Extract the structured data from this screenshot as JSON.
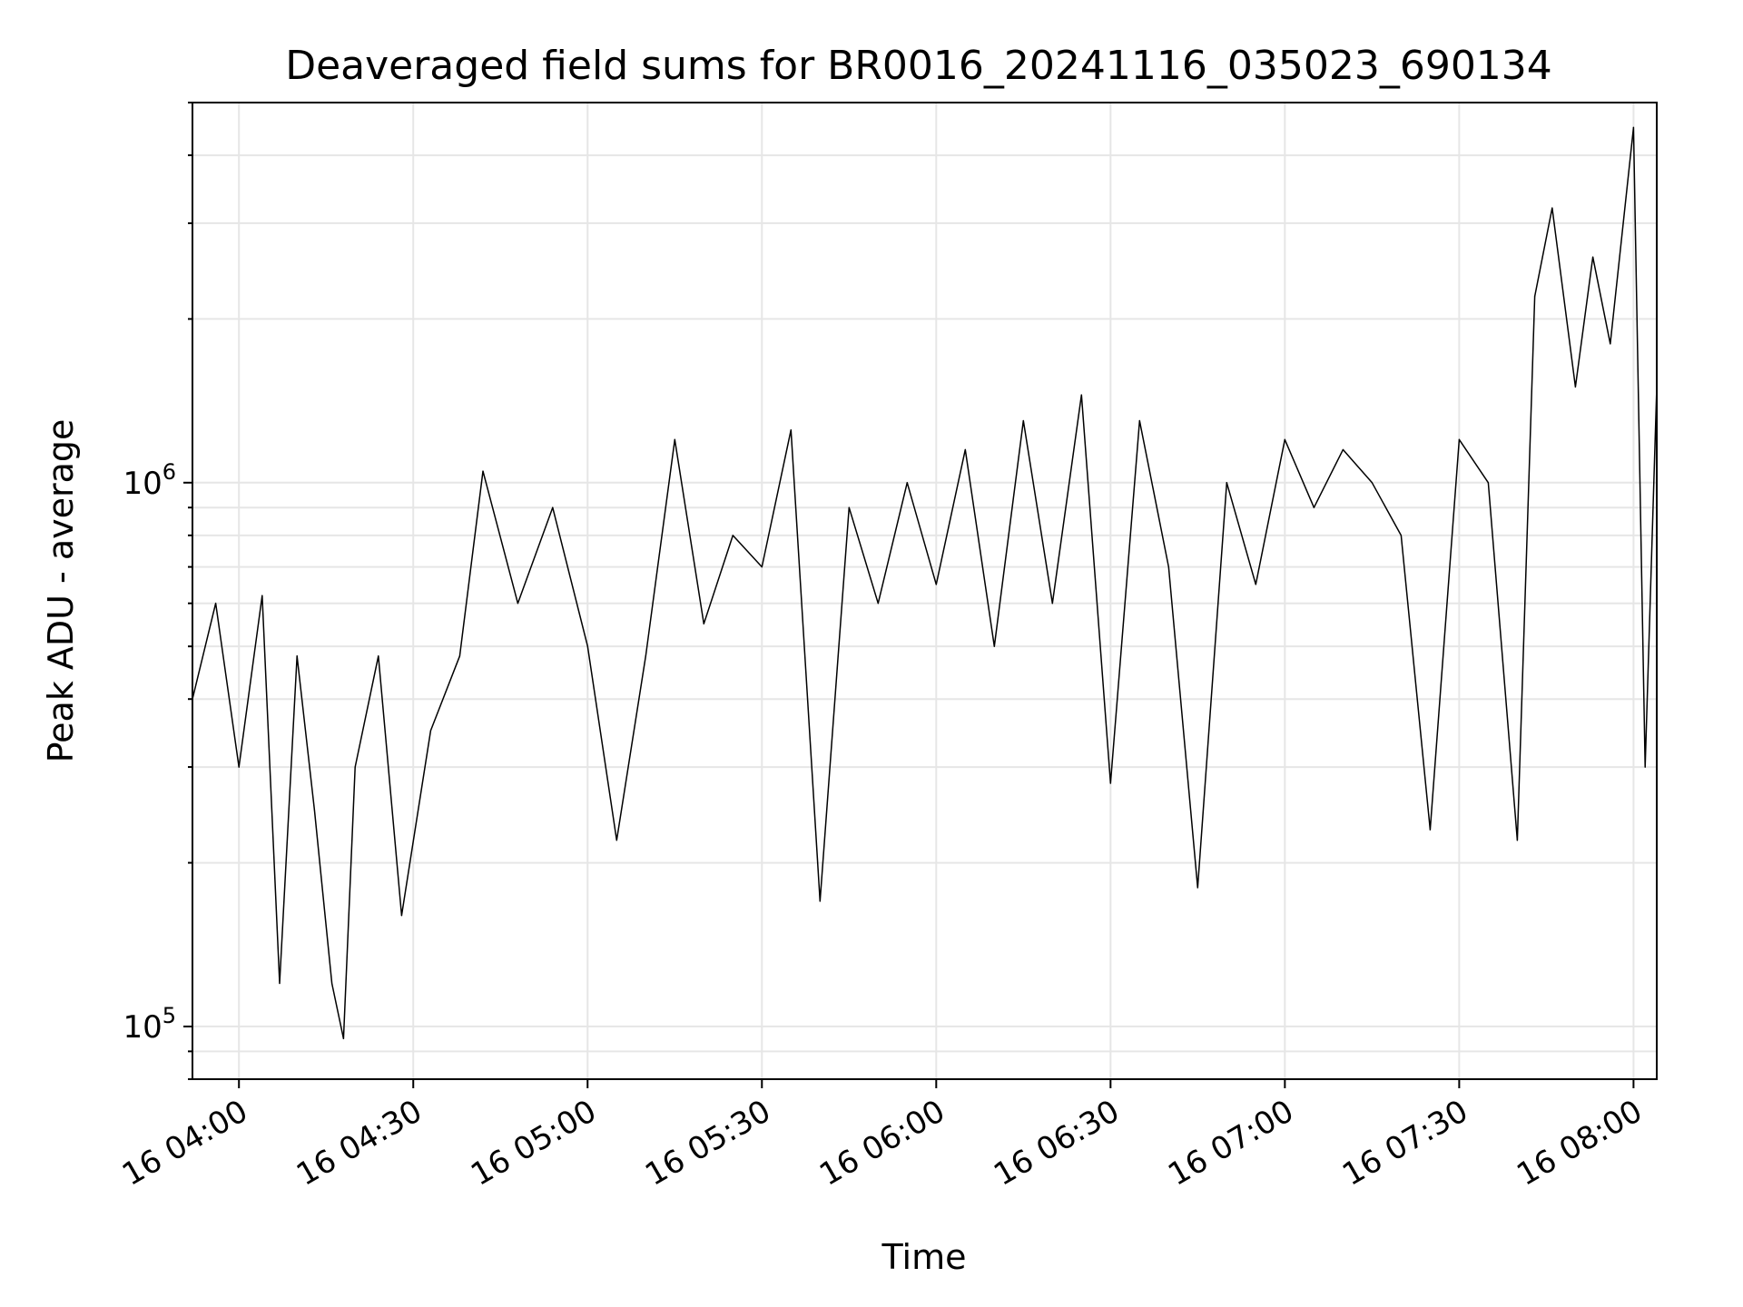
{
  "chart_data": {
    "type": "line",
    "title": "Deaveraged field sums for BR0016_20241116_035023_690134",
    "xlabel": "Time",
    "ylabel": "Peak ADU - average",
    "y_scale": "log",
    "ylim": [
      80000,
      5000000
    ],
    "xlim": [
      "2024-11-16 03:52",
      "2024-11-16 08:04"
    ],
    "x_ticks": [
      {
        "value": "2024-11-16 04:00",
        "label": "16 04:00"
      },
      {
        "value": "2024-11-16 04:30",
        "label": "16 04:30"
      },
      {
        "value": "2024-11-16 05:00",
        "label": "16 05:00"
      },
      {
        "value": "2024-11-16 05:30",
        "label": "16 05:30"
      },
      {
        "value": "2024-11-16 06:00",
        "label": "16 06:00"
      },
      {
        "value": "2024-11-16 06:30",
        "label": "16 06:30"
      },
      {
        "value": "2024-11-16 07:00",
        "label": "16 07:00"
      },
      {
        "value": "2024-11-16 07:30",
        "label": "16 07:30"
      },
      {
        "value": "2024-11-16 08:00",
        "label": "16 08:00"
      }
    ],
    "y_ticks": [
      {
        "value": 100000,
        "base": "10",
        "exponent": "5"
      },
      {
        "value": 1000000,
        "base": "10",
        "exponent": "6"
      }
    ],
    "grid": true,
    "line_color": "#000000",
    "series": [
      {
        "x": [
          "2024-11-16 03:52",
          "2024-11-16 03:56",
          "2024-11-16 04:00",
          "2024-11-16 04:04",
          "2024-11-16 04:07",
          "2024-11-16 04:10",
          "2024-11-16 04:13",
          "2024-11-16 04:16",
          "2024-11-16 04:18",
          "2024-11-16 04:20",
          "2024-11-16 04:24",
          "2024-11-16 04:28",
          "2024-11-16 04:33",
          "2024-11-16 04:38",
          "2024-11-16 04:42",
          "2024-11-16 04:48",
          "2024-11-16 04:54",
          "2024-11-16 05:00",
          "2024-11-16 05:05",
          "2024-11-16 05:10",
          "2024-11-16 05:15",
          "2024-11-16 05:20",
          "2024-11-16 05:25",
          "2024-11-16 05:30",
          "2024-11-16 05:35",
          "2024-11-16 05:40",
          "2024-11-16 05:45",
          "2024-11-16 05:50",
          "2024-11-16 05:55",
          "2024-11-16 06:00",
          "2024-11-16 06:05",
          "2024-11-16 06:10",
          "2024-11-16 06:15",
          "2024-11-16 06:20",
          "2024-11-16 06:25",
          "2024-11-16 06:30",
          "2024-11-16 06:35",
          "2024-11-16 06:40",
          "2024-11-16 06:45",
          "2024-11-16 06:50",
          "2024-11-16 06:55",
          "2024-11-16 07:00",
          "2024-11-16 07:05",
          "2024-11-16 07:10",
          "2024-11-16 07:15",
          "2024-11-16 07:20",
          "2024-11-16 07:25",
          "2024-11-16 07:30",
          "2024-11-16 07:35",
          "2024-11-16 07:40",
          "2024-11-16 07:43",
          "2024-11-16 07:46",
          "2024-11-16 07:50",
          "2024-11-16 07:53",
          "2024-11-16 07:56",
          "2024-11-16 08:00",
          "2024-11-16 08:02",
          "2024-11-16 08:04"
        ],
        "y": [
          400000,
          600000,
          300000,
          620000,
          120000,
          480000,
          250000,
          120000,
          95000,
          300000,
          480000,
          160000,
          350000,
          480000,
          1050000,
          600000,
          900000,
          500000,
          220000,
          480000,
          1200000,
          550000,
          800000,
          700000,
          1250000,
          170000,
          900000,
          600000,
          1000000,
          650000,
          1150000,
          500000,
          1300000,
          600000,
          1450000,
          280000,
          1300000,
          700000,
          180000,
          1000000,
          650000,
          1200000,
          900000,
          1150000,
          1000000,
          800000,
          230000,
          1200000,
          1000000,
          220000,
          2200000,
          3200000,
          1500000,
          2600000,
          1800000,
          4500000,
          300000,
          1500000
        ]
      }
    ]
  }
}
